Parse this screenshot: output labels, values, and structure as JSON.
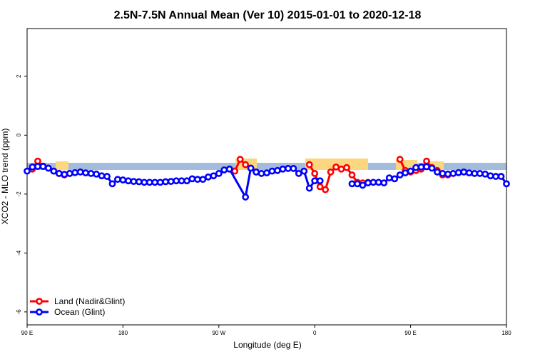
{
  "chart_data": {
    "type": "line",
    "title": "2.5N-7.5N Annual Mean (Ver 10)   2015-01-01 to 2020-12-18",
    "x_label": "Longitude (deg E)",
    "y_label": "XCO2 - MLO trend (ppm)",
    "xlim": [
      90,
      540
    ],
    "xticks": [
      {
        "value": 90,
        "label": "90 E"
      },
      {
        "value": 180,
        "label": "180"
      },
      {
        "value": 270,
        "label": "90 W"
      },
      {
        "value": 360,
        "label": "0"
      },
      {
        "value": 450,
        "label": "90 E"
      },
      {
        "value": 540,
        "label": "180"
      }
    ],
    "ylim": [
      -6.44,
      3.62
    ],
    "yticks": [
      -6,
      -4,
      -2,
      0,
      2
    ],
    "legend": "bottomleft",
    "series": [
      {
        "name": "Land (Nadir&Glint)",
        "color": "#ff0000",
        "x": [
          95,
          100,
          105,
          110,
          115,
          120,
          125,
          130,
          250,
          285,
          290,
          295,
          300,
          305,
          330,
          355,
          360,
          365,
          370,
          375,
          380,
          385,
          390,
          395,
          400,
          405,
          410,
          425,
          440,
          445,
          450,
          455,
          460,
          465,
          470,
          475,
          480,
          485
        ],
        "values": [
          -1.15,
          -0.88,
          -1.05,
          -1.12,
          -1.22,
          -1.3,
          -1.35,
          -1.3,
          null,
          -1.22,
          -0.82,
          -1.0,
          -1.12,
          -1.25,
          null,
          -1.0,
          -1.3,
          -1.75,
          -1.85,
          -1.25,
          -1.08,
          -1.15,
          -1.1,
          -1.35,
          -1.6,
          -1.62,
          -1.6,
          null,
          -0.82,
          -1.2,
          -1.25,
          -1.2,
          -1.15,
          -0.88,
          -1.1,
          -1.2,
          -1.35,
          -1.35
        ]
      },
      {
        "name": "Ocean (Glint)",
        "color": "#0000ff",
        "x": [
          90,
          95,
          100,
          105,
          110,
          115,
          120,
          125,
          130,
          135,
          140,
          145,
          150,
          155,
          160,
          165,
          170,
          175,
          180,
          185,
          190,
          195,
          200,
          205,
          210,
          215,
          220,
          225,
          230,
          235,
          240,
          245,
          250,
          255,
          260,
          265,
          270,
          275,
          280,
          295,
          300,
          305,
          310,
          315,
          320,
          325,
          330,
          335,
          340,
          345,
          350,
          355,
          360,
          365,
          380,
          395,
          400,
          405,
          410,
          415,
          420,
          425,
          430,
          435,
          440,
          445,
          450,
          455,
          460,
          465,
          470,
          475,
          480,
          485,
          490,
          495,
          500,
          505,
          510,
          515,
          520,
          525,
          530,
          535,
          540
        ],
        "values": [
          -1.22,
          -1.08,
          -1.06,
          -1.06,
          -1.12,
          -1.22,
          -1.3,
          -1.33,
          -1.3,
          -1.27,
          -1.25,
          -1.28,
          -1.3,
          -1.32,
          -1.38,
          -1.4,
          -1.65,
          -1.5,
          -1.52,
          -1.55,
          -1.57,
          -1.58,
          -1.6,
          -1.6,
          -1.6,
          -1.6,
          -1.58,
          -1.57,
          -1.55,
          -1.55,
          -1.55,
          -1.48,
          -1.5,
          -1.5,
          -1.42,
          -1.38,
          -1.3,
          -1.18,
          -1.15,
          -2.1,
          -1.12,
          -1.25,
          -1.3,
          -1.28,
          -1.22,
          -1.2,
          -1.15,
          -1.13,
          -1.13,
          -1.3,
          -1.22,
          -1.8,
          -1.55,
          -1.55,
          null,
          -1.65,
          -1.65,
          -1.7,
          -1.62,
          -1.6,
          -1.6,
          -1.62,
          -1.45,
          -1.48,
          -1.35,
          -1.28,
          -1.22,
          -1.1,
          -1.08,
          -1.07,
          -1.12,
          -1.25,
          -1.3,
          -1.32,
          -1.3,
          -1.27,
          -1.25,
          -1.28,
          -1.3,
          -1.3,
          -1.32,
          -1.38,
          -1.4,
          -1.4,
          -1.65
        ]
      }
    ]
  }
}
